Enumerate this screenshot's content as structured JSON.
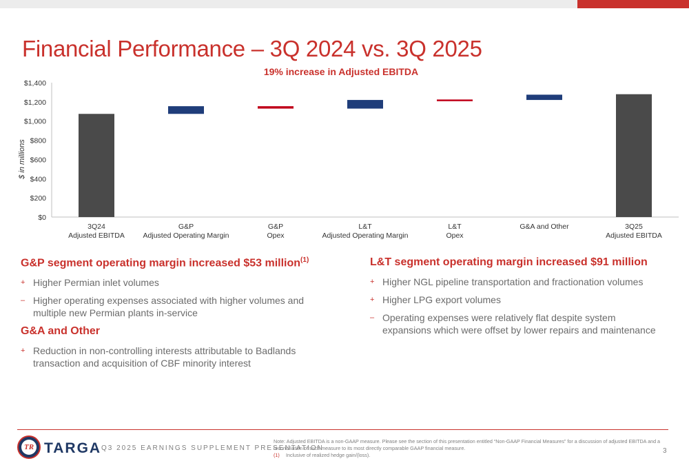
{
  "slide": {
    "title": "Financial Performance – 3Q 2024 vs. 3Q 2025",
    "subtitle": "19% increase in Adjusted EBITDA",
    "ylabel": "$ in millions"
  },
  "chart_data": {
    "type": "bar",
    "subtype": "waterfall",
    "title": "19% increase in Adjusted EBITDA",
    "ylabel": "$ in millions",
    "ylim": [
      0,
      1400
    ],
    "yticks": [
      "$0",
      "$200",
      "$400",
      "$600",
      "$800",
      "$1,000",
      "$1,200",
      "$1,400"
    ],
    "ytick_values": [
      0,
      200,
      400,
      600,
      800,
      1000,
      1200,
      1400
    ],
    "categories": [
      [
        "3Q24",
        "Adjusted EBITDA"
      ],
      [
        "G&P",
        "Adjusted Operating Margin"
      ],
      [
        "G&P",
        "Opex"
      ],
      [
        "L&T",
        "Adjusted Operating Margin"
      ],
      [
        "L&T",
        "Opex"
      ],
      [
        "G&A and Other"
      ],
      [
        "3Q25",
        "Adjusted EBITDA"
      ]
    ],
    "bars": [
      {
        "kind": "total",
        "start": 0,
        "end": 1075,
        "color": "#4a4a4a"
      },
      {
        "kind": "increase",
        "start": 1075,
        "end": 1155,
        "color": "#1f3d7a"
      },
      {
        "kind": "decrease",
        "start": 1155,
        "end": 1130,
        "color": "#c0001a"
      },
      {
        "kind": "increase",
        "start": 1130,
        "end": 1220,
        "color": "#1f3d7a"
      },
      {
        "kind": "decrease",
        "start": 1225,
        "end": 1213,
        "color": "#c0001a"
      },
      {
        "kind": "increase",
        "start": 1220,
        "end": 1275,
        "color": "#1f3d7a"
      },
      {
        "kind": "total",
        "start": 0,
        "end": 1280,
        "color": "#4a4a4a"
      }
    ],
    "grid": false
  },
  "sections": {
    "gp": {
      "heading": "G&P segment operating margin increased $53 million",
      "heading_sup": "(1)",
      "bullets": [
        {
          "mark": "+",
          "text": "Higher Permian inlet volumes"
        },
        {
          "mark": "–",
          "text": "Higher operating expenses associated with higher volumes and multiple new Permian plants in-service"
        }
      ]
    },
    "ga": {
      "heading": "G&A and Other",
      "bullets": [
        {
          "mark": "+",
          "text": "Reduction in non-controlling interests attributable to Badlands transaction and acquisition of CBF minority interest"
        }
      ]
    },
    "lt": {
      "heading": "L&T segment operating margin increased $91 million",
      "bullets": [
        {
          "mark": "+",
          "text": "Higher NGL pipeline transportation and fractionation volumes"
        },
        {
          "mark": "+",
          "text": "Higher LPG export volumes"
        },
        {
          "mark": "–",
          "text": "Operating expenses were relatively flat despite system expansions which were offset by lower repairs and maintenance"
        }
      ]
    }
  },
  "footer": {
    "brand": "TARGA",
    "presentation": "Q3 2025 EARNINGS SUPPLEMENT PRESENTATION",
    "note": "Note: Adjusted EBITDA is a non-GAAP measure. Please see the section of this presentation entitled “Non-GAAP Financial Measures” for a discussion of adjusted EBITDA and a reconciliation of such measure to its most directly comparable GAAP financial measure.",
    "footnote_num": "(1)",
    "footnote_text": "Inclusive of realized hedge gain/(loss).",
    "page_number": "3"
  },
  "colors": {
    "accent": "#c9312c",
    "brand_navy": "#1f3864",
    "total_bar": "#4a4a4a",
    "increase_bar": "#1f3d7a",
    "decrease_bar": "#c0001a"
  }
}
